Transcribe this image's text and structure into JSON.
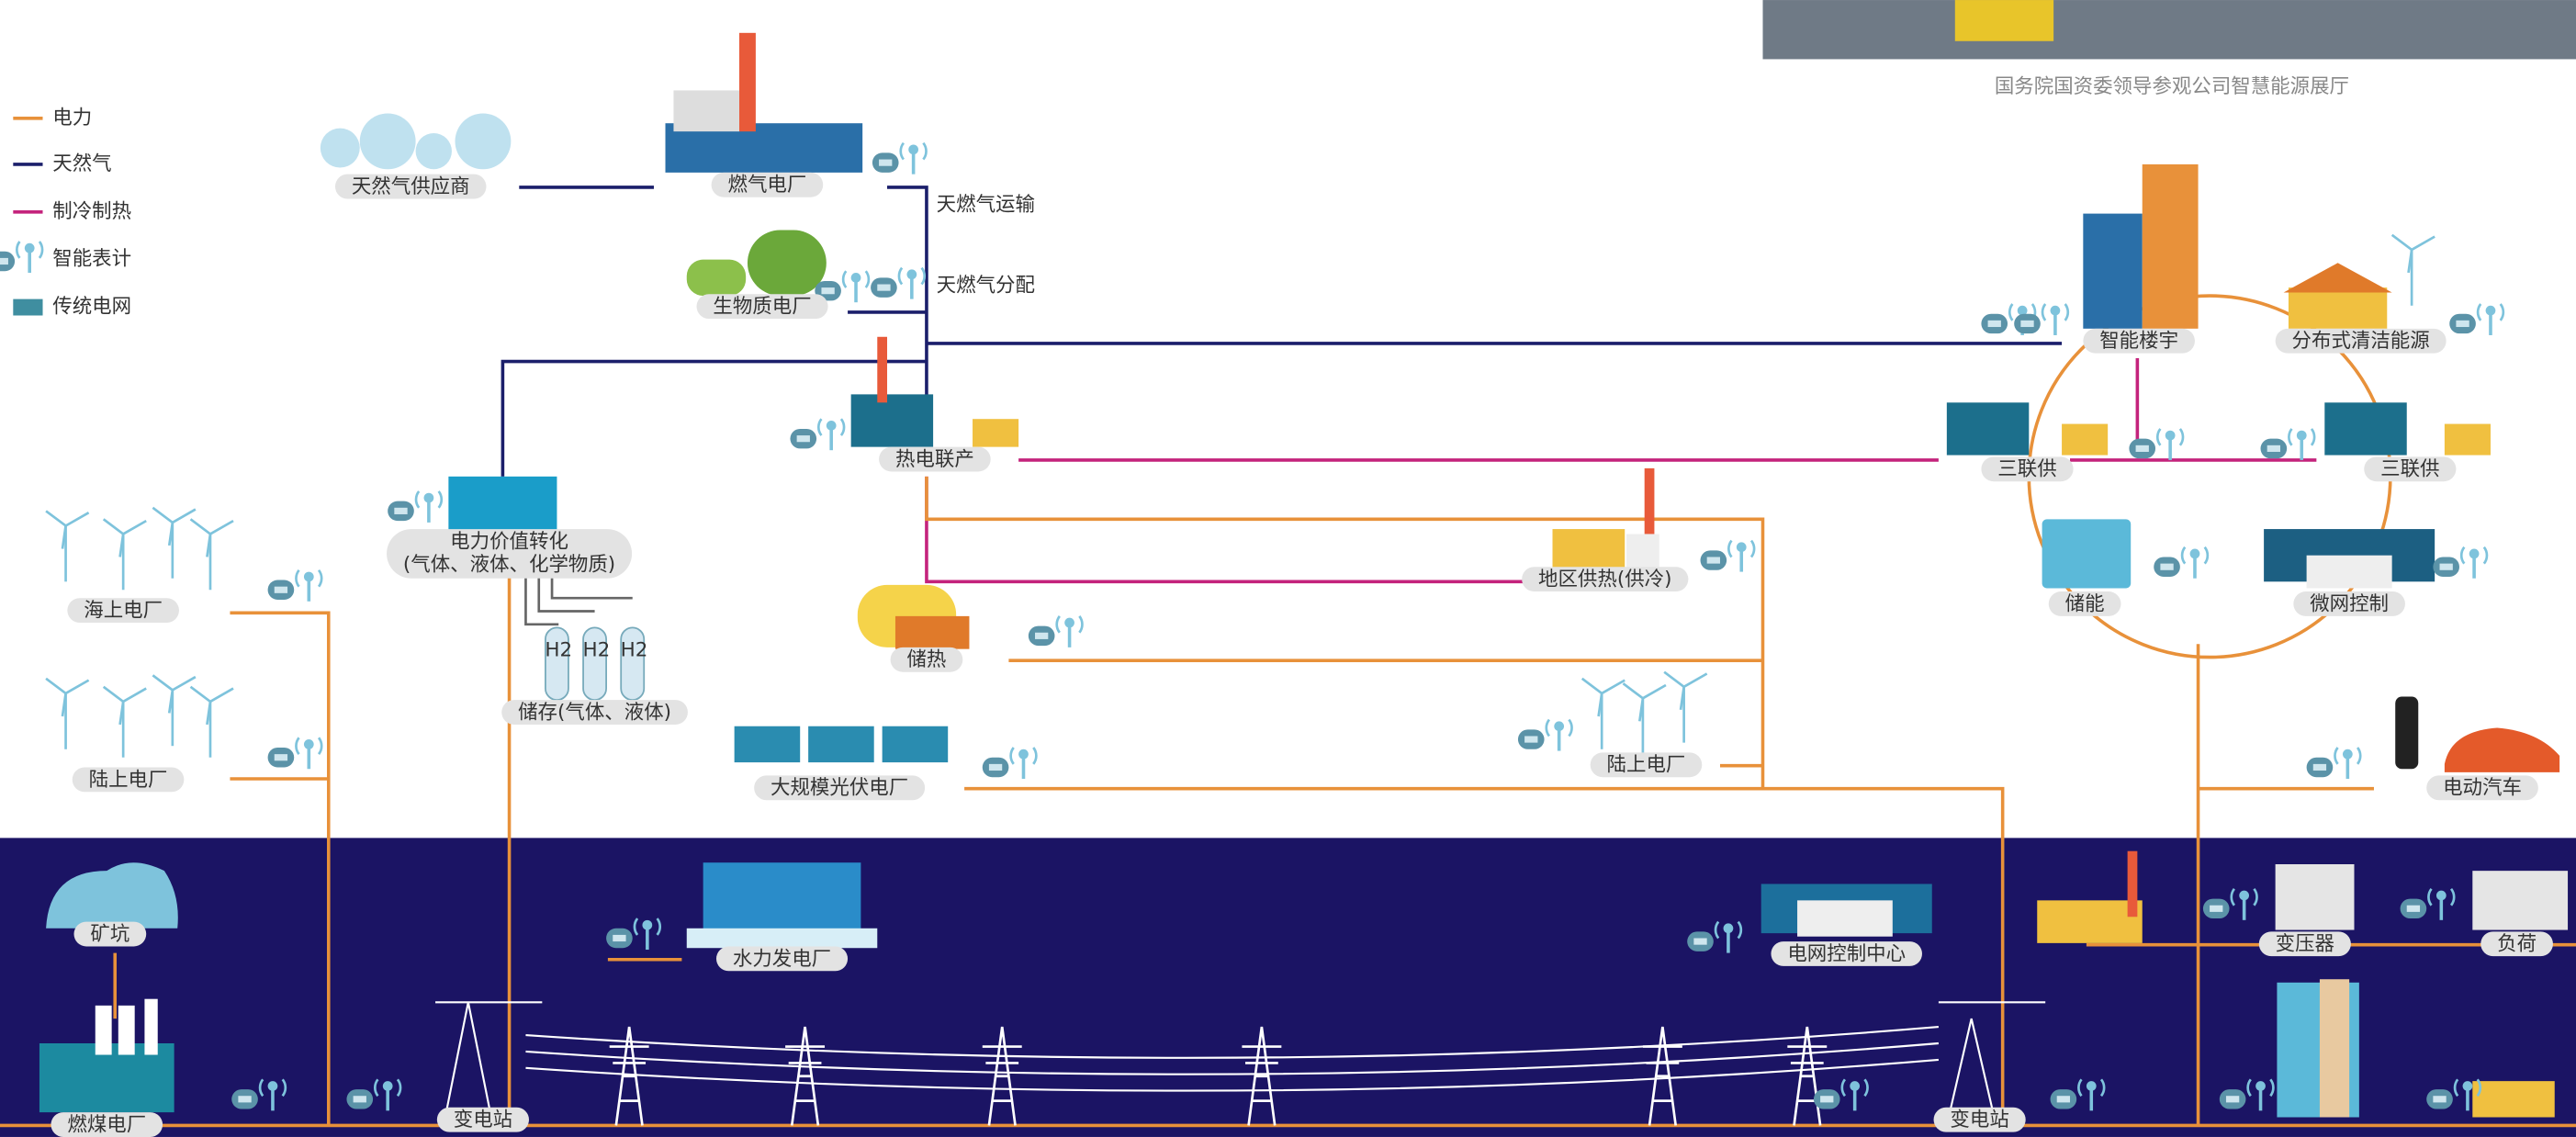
{
  "caption": "国务院国资委领导参观公司智慧能源展厅",
  "legend": [
    "电力",
    "天然气",
    "制冷制热",
    "智能表计",
    "传统电网"
  ],
  "edge_labels": [
    "天燃气运输",
    "天燃气分配"
  ],
  "h2_labels": [
    "H2",
    "H2",
    "H2"
  ],
  "nodes": [
    {
      "label": "天然气供应商"
    },
    {
      "label": "燃气电厂"
    },
    {
      "label": "生物质电厂"
    },
    {
      "label": "热电联产"
    },
    {
      "label": "电力价值转化",
      "sublabel": "(气体、液体、化学物质)"
    },
    {
      "label": "储存(气体、液体)"
    },
    {
      "label": "海上电厂"
    },
    {
      "label": "陆上电厂"
    },
    {
      "label": "储热"
    },
    {
      "label": "大规模光伏电厂"
    },
    {
      "label": "地区供热(供冷)"
    },
    {
      "label": "陆上电厂"
    },
    {
      "label": "智能楼宇"
    },
    {
      "label": "分布式清洁能源"
    },
    {
      "label": "三联供"
    },
    {
      "label": "三联供"
    },
    {
      "label": "储能"
    },
    {
      "label": "微网控制"
    },
    {
      "label": "电动汽车"
    },
    {
      "label": "矿坑"
    },
    {
      "label": "水力发电厂"
    },
    {
      "label": "电网控制中心"
    },
    {
      "label": "变压器"
    },
    {
      "label": "负荷"
    },
    {
      "label": "燃煤电厂"
    },
    {
      "label": "变电站"
    },
    {
      "label": "变电站"
    }
  ]
}
